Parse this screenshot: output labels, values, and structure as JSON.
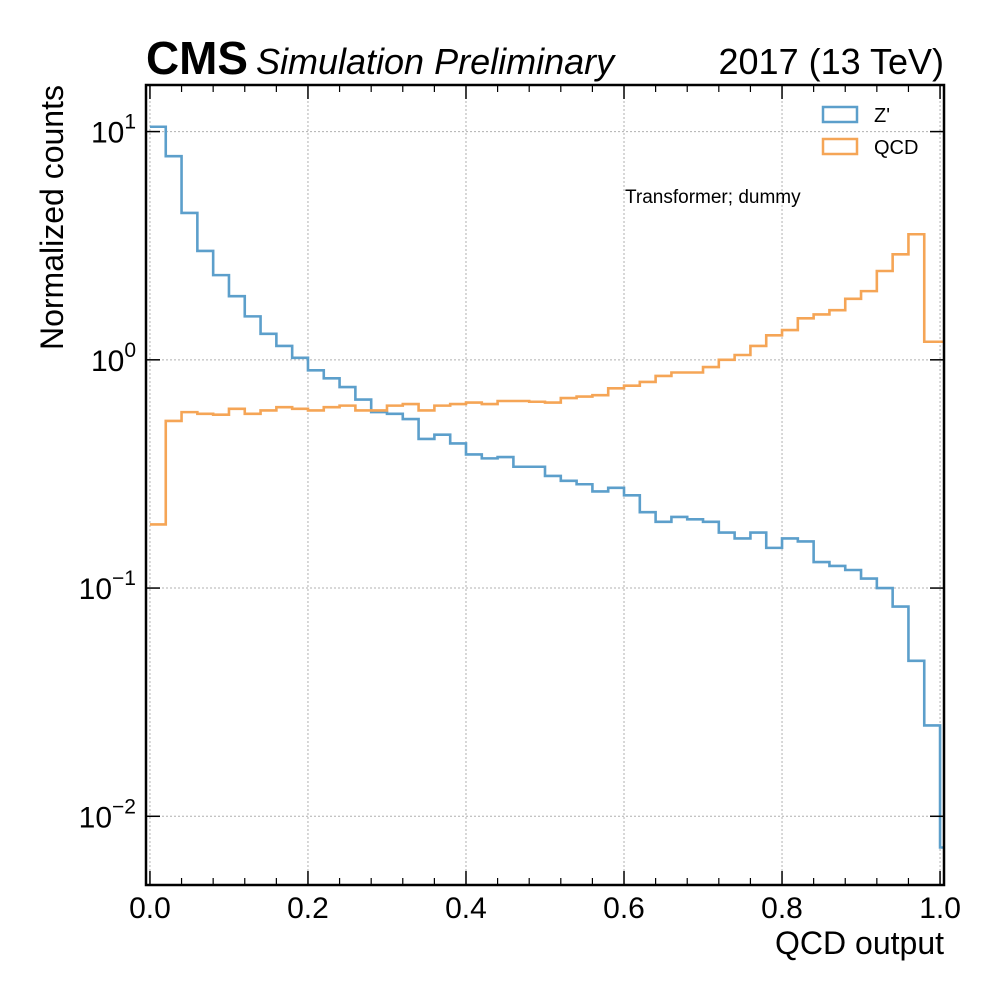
{
  "header": {
    "experiment": "CMS",
    "status": "Simulation Preliminary",
    "lumi": "2017 (13 TeV)"
  },
  "annotation": "Transformer; dummy",
  "chart_data": {
    "type": "step",
    "xlabel": "QCD output",
    "ylabel": "Normalized counts",
    "xlim": [
      -0.005,
      1.005
    ],
    "ylim": [
      0.005,
      16
    ],
    "yscale": "log",
    "grid": true,
    "legend_position": "top-right",
    "xticks": [
      "0.0",
      "0.2",
      "0.4",
      "0.6",
      "0.8",
      "1.0"
    ],
    "xtick_values": [
      0.0,
      0.2,
      0.4,
      0.6,
      0.8,
      1.0
    ],
    "yticks": [
      {
        "base": "10",
        "exp": "1",
        "value": 10
      },
      {
        "base": "10",
        "exp": "0",
        "value": 1
      },
      {
        "base": "10",
        "exp": "−1",
        "value": 0.1
      },
      {
        "base": "10",
        "exp": "−2",
        "value": 0.01
      }
    ],
    "bin_width": 0.02,
    "x_start": 0.0,
    "series": [
      {
        "name": "Z'",
        "color": "#5c9fcb",
        "values": [
          10.5,
          7.8,
          4.4,
          3.0,
          2.35,
          1.9,
          1.55,
          1.3,
          1.15,
          1.02,
          0.9,
          0.83,
          0.76,
          0.67,
          0.59,
          0.58,
          0.55,
          0.45,
          0.47,
          0.43,
          0.385,
          0.37,
          0.375,
          0.34,
          0.34,
          0.31,
          0.295,
          0.285,
          0.265,
          0.275,
          0.255,
          0.215,
          0.195,
          0.205,
          0.2,
          0.195,
          0.175,
          0.165,
          0.175,
          0.15,
          0.165,
          0.16,
          0.13,
          0.125,
          0.12,
          0.11,
          0.1,
          0.083,
          0.048,
          0.025,
          0.0073
        ]
      },
      {
        "name": "QCD",
        "color": "#f5a556",
        "values": [
          0.19,
          0.54,
          0.59,
          0.58,
          0.575,
          0.61,
          0.58,
          0.6,
          0.62,
          0.61,
          0.6,
          0.62,
          0.63,
          0.6,
          0.6,
          0.63,
          0.64,
          0.6,
          0.63,
          0.64,
          0.65,
          0.64,
          0.66,
          0.66,
          0.655,
          0.65,
          0.68,
          0.69,
          0.7,
          0.75,
          0.77,
          0.8,
          0.85,
          0.88,
          0.88,
          0.93,
          1.0,
          1.05,
          1.15,
          1.28,
          1.35,
          1.52,
          1.58,
          1.65,
          1.85,
          2.0,
          2.45,
          2.9,
          3.55,
          1.2,
          1.2
        ]
      }
    ]
  }
}
